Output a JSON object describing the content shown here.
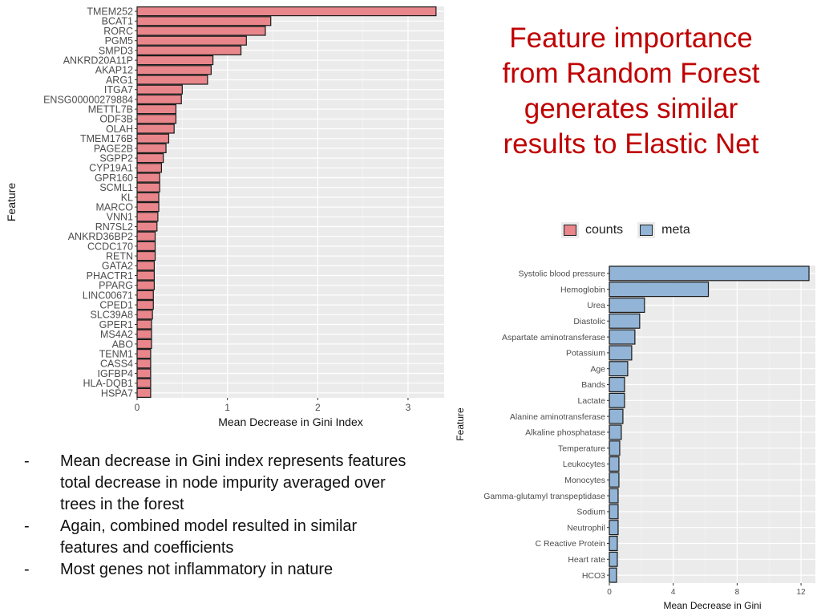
{
  "headline": "Feature importance from Random Forest generates similar results to Elastic Net",
  "legend": [
    {
      "label": "counts",
      "color": "#e8868b"
    },
    {
      "label": "meta",
      "color": "#92b4d6"
    }
  ],
  "bullets": [
    "Mean decrease in Gini index represents features total decrease in node impurity averaged over trees in the forest",
    "Again, combined model resulted in similar features and coefficients",
    "Most genes not inflammatory in nature"
  ],
  "bullet_marker": "-",
  "chart_data": [
    {
      "type": "bar",
      "orientation": "horizontal",
      "series_name": "counts",
      "color": "#e8868b",
      "xlabel": "Mean Decrease in Gini Index",
      "ylabel": "Feature",
      "xlim": [
        0,
        3.4
      ],
      "xticks": [
        0,
        1,
        2,
        3
      ],
      "grid": true,
      "categories": [
        "TMEM252",
        "BCAT1",
        "RORC",
        "PGM5",
        "SMPD3",
        "ANKRD20A11P",
        "AKAP12",
        "ARG1",
        "ITGA7",
        "ENSG00000279884",
        "METTL7B",
        "ODF3B",
        "OLAH",
        "TMEM176B",
        "PAGE2B",
        "SGPP2",
        "CYP19A1",
        "GPR160",
        "SCML1",
        "KL",
        "MARCO",
        "VNN1",
        "RN7SL2",
        "ANKRD36BP2",
        "CCDC170",
        "RETN",
        "GATA2",
        "PHACTR1",
        "PPARG",
        "LINC00671",
        "CPED1",
        "SLC39A8",
        "GPER1",
        "MS4A2",
        "ABO",
        "TENM1",
        "CASS4",
        "IGFBP4",
        "HLA-DQB1",
        "HSPA7"
      ],
      "values": [
        3.31,
        1.48,
        1.42,
        1.21,
        1.15,
        0.84,
        0.82,
        0.78,
        0.5,
        0.49,
        0.43,
        0.43,
        0.41,
        0.35,
        0.32,
        0.29,
        0.27,
        0.25,
        0.25,
        0.24,
        0.24,
        0.23,
        0.22,
        0.2,
        0.2,
        0.2,
        0.19,
        0.19,
        0.19,
        0.18,
        0.18,
        0.17,
        0.16,
        0.16,
        0.16,
        0.15,
        0.15,
        0.15,
        0.15,
        0.15
      ]
    },
    {
      "type": "bar",
      "orientation": "horizontal",
      "series_name": "meta",
      "color": "#92b4d6",
      "xlabel": "Mean Decrease in Gini",
      "ylabel": "Feature",
      "xlim": [
        0,
        12.9
      ],
      "xticks": [
        0,
        4,
        8,
        12
      ],
      "grid": true,
      "categories": [
        "Systolic blood pressure",
        "Hemoglobin",
        "Urea",
        "Diastolic",
        "Aspartate aminotransferase",
        "Potassium",
        "Age",
        "Bands",
        "Lactate",
        "Alanine aminotransferase",
        "Alkaline phosphatase",
        "Temperature",
        "Leukocytes",
        "Monocytes",
        "Gamma-glutamyl transpeptidase",
        "Sodium",
        "Neutrophil",
        "C Reactive Protein",
        "Heart rate",
        "HCO3"
      ],
      "values": [
        12.5,
        6.2,
        2.2,
        1.9,
        1.6,
        1.4,
        1.15,
        0.95,
        0.95,
        0.85,
        0.75,
        0.65,
        0.6,
        0.6,
        0.55,
        0.55,
        0.55,
        0.5,
        0.5,
        0.45
      ]
    }
  ]
}
